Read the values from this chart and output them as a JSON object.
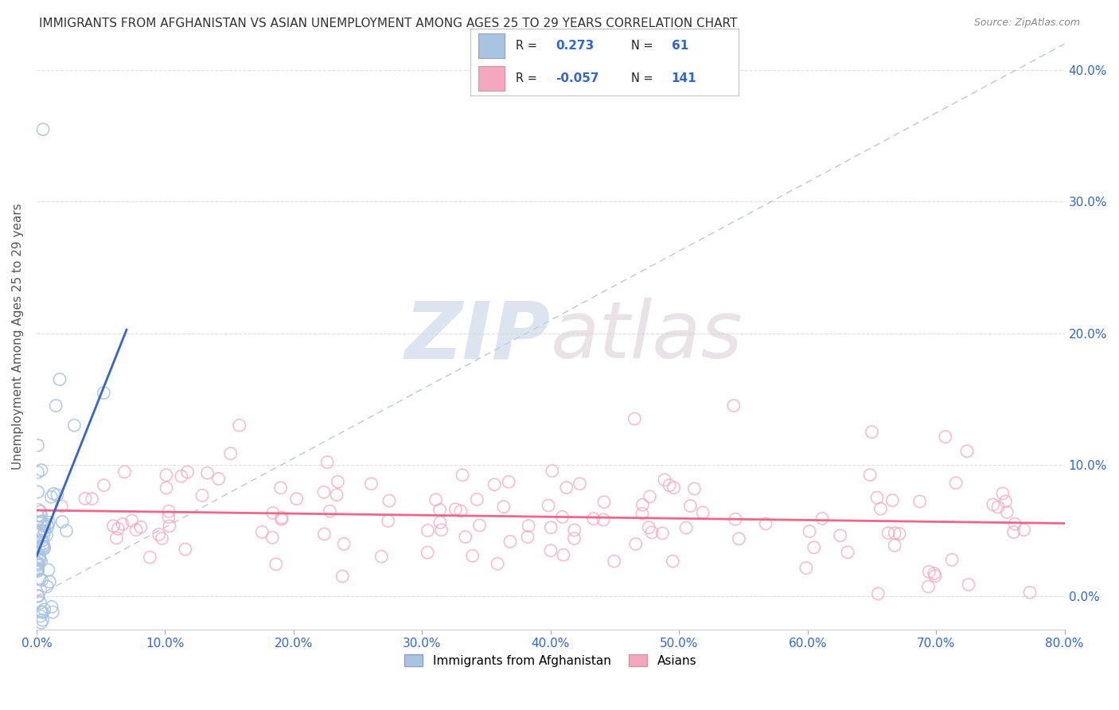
{
  "title": "IMMIGRANTS FROM AFGHANISTAN VS ASIAN UNEMPLOYMENT AMONG AGES 25 TO 29 YEARS CORRELATION CHART",
  "source": "Source: ZipAtlas.com",
  "ylabel": "Unemployment Among Ages 25 to 29 years",
  "xmin": 0.0,
  "xmax": 0.8,
  "ymin": -0.025,
  "ymax": 0.42,
  "xticks": [
    0.0,
    0.1,
    0.2,
    0.3,
    0.4,
    0.5,
    0.6,
    0.7,
    0.8
  ],
  "yticks": [
    0.0,
    0.1,
    0.2,
    0.3,
    0.4
  ],
  "xtick_labels": [
    "0.0%",
    "10.0%",
    "20.0%",
    "30.0%",
    "40.0%",
    "50.0%",
    "60.0%",
    "70.0%",
    "80.0%"
  ],
  "ytick_labels": [
    "0.0%",
    "10.0%",
    "20.0%",
    "30.0%",
    "40.0%"
  ],
  "legend_R1": "0.273",
  "legend_N1": "61",
  "legend_R2": "-0.057",
  "legend_N2": "141",
  "color_blue": "#a8c4e0",
  "color_pink": "#f4a8c0",
  "trendline_blue": "#3366cc",
  "trendline_pink": "#ee6688",
  "watermark_color": "#d0dce8",
  "series1_label": "Immigrants from Afghanistan",
  "series2_label": "Asians",
  "background_color": "#ffffff",
  "grid_color": "#cccccc",
  "title_color": "#333333",
  "axis_label_color": "#555555",
  "tick_color_blue": "#3366cc",
  "legend_text_color": "#333333",
  "legend_value_color": "#3366cc"
}
